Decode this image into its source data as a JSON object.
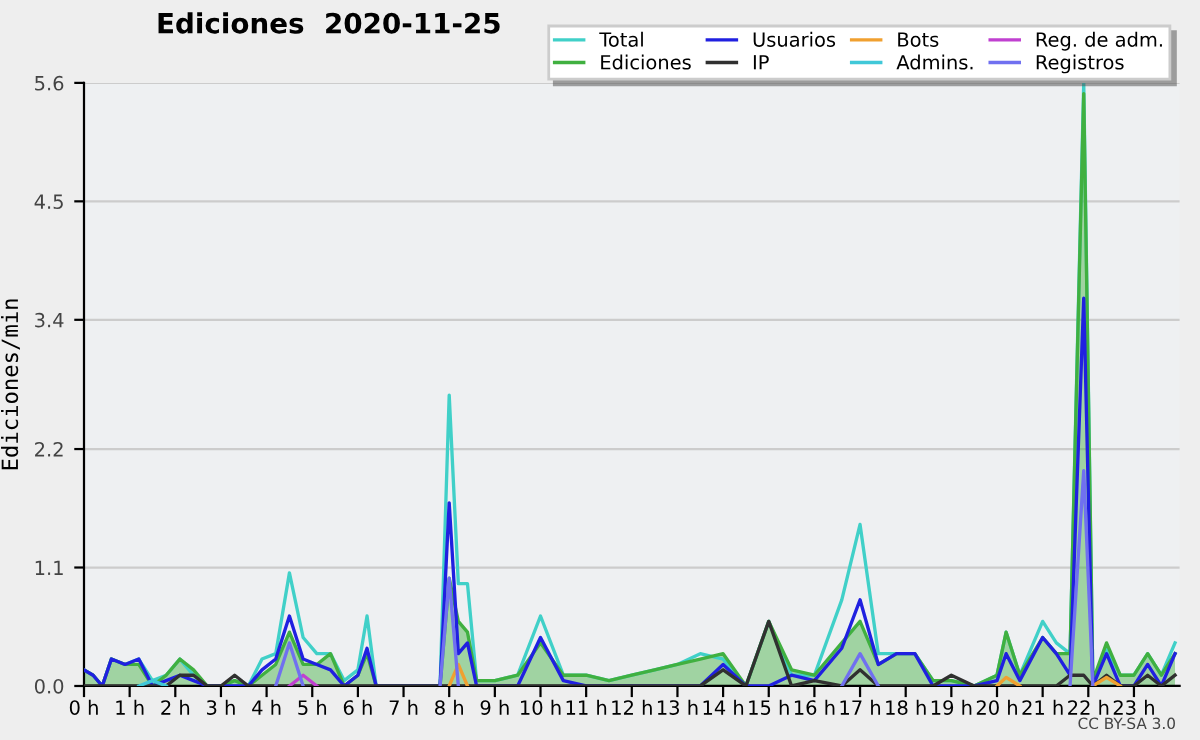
{
  "chart_data": {
    "type": "line",
    "title": "Ediciones  2020-11-25",
    "ylabel": "Ediciones/min",
    "annotations": [
      "CC BY-SA 3.0"
    ],
    "x": [
      0,
      0.2,
      0.4,
      0.6,
      0.9,
      1.2,
      1.5,
      1.8,
      2.1,
      2.4,
      2.7,
      3.0,
      3.3,
      3.6,
      3.9,
      4.2,
      4.5,
      4.8,
      5.1,
      5.4,
      5.7,
      6.0,
      6.2,
      6.4,
      7.0,
      7.6,
      7.8,
      8.0,
      8.2,
      8.4,
      8.6,
      9.0,
      9.5,
      10.0,
      10.5,
      11.0,
      11.5,
      12.0,
      12.5,
      13.0,
      13.5,
      14.0,
      14.5,
      15.0,
      15.5,
      16.0,
      16.6,
      17.0,
      17.4,
      17.8,
      18.2,
      18.6,
      19.0,
      19.5,
      20.0,
      20.2,
      20.5,
      21.0,
      21.3,
      21.6,
      21.9,
      22.1,
      22.4,
      22.7,
      23.0,
      23.3,
      23.6,
      23.9
    ],
    "series": [
      {
        "name": "Total",
        "color": "#40d0c8",
        "values": [
          0.15,
          0.1,
          0,
          0.25,
          0.2,
          0.25,
          0.05,
          0.1,
          0.25,
          0.1,
          0,
          0,
          0.05,
          0,
          0.25,
          0.3,
          1.05,
          0.45,
          0.3,
          0.3,
          0.05,
          0.15,
          0.65,
          0,
          0,
          0,
          0,
          2.7,
          0.95,
          0.95,
          0.05,
          0.05,
          0.1,
          0.65,
          0.1,
          0.1,
          0.05,
          0.1,
          0.15,
          0.2,
          0.3,
          0.25,
          0,
          0.6,
          0.1,
          0.1,
          0.8,
          1.5,
          0.3,
          0.3,
          0.3,
          0.05,
          0.05,
          0,
          0.1,
          0.5,
          0.1,
          0.6,
          0.4,
          0.3,
          5.6,
          0.05,
          0.35,
          0.1,
          0.1,
          0.3,
          0.1,
          0.4
        ]
      },
      {
        "name": "Ediciones",
        "color": "#40b040",
        "type": "area",
        "values": [
          0.15,
          0.1,
          0,
          0.25,
          0.2,
          0.2,
          0,
          0.1,
          0.25,
          0.15,
          0,
          0,
          0.05,
          0,
          0.1,
          0.2,
          0.5,
          0.2,
          0.2,
          0.3,
          0,
          0.1,
          0.3,
          0,
          0,
          0,
          0,
          1.0,
          0.6,
          0.5,
          0.05,
          0.05,
          0.1,
          0.4,
          0.1,
          0.1,
          0.05,
          0.1,
          0.15,
          0.2,
          0.25,
          0.3,
          0,
          0.6,
          0.15,
          0.1,
          0.4,
          0.6,
          0.2,
          0.3,
          0.3,
          0.05,
          0.05,
          0,
          0.1,
          0.5,
          0.1,
          0.45,
          0.3,
          0.3,
          5.5,
          0.05,
          0.4,
          0.1,
          0.1,
          0.3,
          0.1,
          0.3
        ]
      },
      {
        "name": "Usuarios",
        "color": "#2020e0",
        "values": [
          0.15,
          0.1,
          0,
          0.25,
          0.2,
          0.25,
          0,
          0.05,
          0.1,
          0.05,
          0,
          0,
          0,
          0,
          0.15,
          0.25,
          0.65,
          0.25,
          0.2,
          0.15,
          0,
          0.1,
          0.35,
          0,
          0,
          0,
          0,
          1.7,
          0.3,
          0.4,
          0,
          0,
          0,
          0.45,
          0.05,
          0,
          0,
          0,
          0,
          0,
          0,
          0.2,
          0,
          0,
          0.1,
          0.05,
          0.35,
          0.8,
          0.2,
          0.3,
          0.3,
          0,
          0,
          0,
          0.05,
          0.3,
          0.05,
          0.45,
          0.3,
          0.1,
          3.6,
          0,
          0.3,
          0,
          0,
          0.2,
          0,
          0.3
        ]
      },
      {
        "name": "IP",
        "color": "#303030",
        "values": [
          0,
          0,
          0,
          0,
          0,
          0,
          0,
          0,
          0.1,
          0.1,
          0,
          0,
          0.1,
          0,
          0,
          0,
          0,
          0,
          0,
          0,
          0,
          0,
          0,
          0,
          0,
          0,
          0,
          0,
          0,
          0,
          0,
          0,
          0,
          0,
          0,
          0,
          0,
          0,
          0,
          0,
          0,
          0.15,
          0,
          0.6,
          0,
          0.05,
          0,
          0.15,
          0,
          0,
          0,
          0,
          0.1,
          0,
          0,
          0,
          0,
          0,
          0,
          0.1,
          0.1,
          0,
          0.1,
          0,
          0,
          0.1,
          0,
          0.1
        ]
      },
      {
        "name": "Bots",
        "color": "#f0a030",
        "values": [
          null,
          null,
          null,
          null,
          null,
          null,
          null,
          null,
          null,
          null,
          null,
          null,
          null,
          null,
          null,
          null,
          null,
          null,
          null,
          null,
          null,
          null,
          null,
          null,
          null,
          null,
          null,
          0,
          0.2,
          0,
          null,
          null,
          null,
          null,
          null,
          null,
          null,
          null,
          null,
          null,
          null,
          null,
          null,
          null,
          null,
          null,
          null,
          null,
          null,
          null,
          null,
          null,
          null,
          null,
          0,
          0.08,
          0,
          null,
          null,
          null,
          null,
          0,
          0.08,
          0,
          null,
          null,
          null,
          null
        ]
      },
      {
        "name": "Admins.",
        "color": "#40c8d8",
        "values": [
          null,
          null,
          null,
          null,
          null,
          0,
          0.05,
          0,
          null,
          null,
          null,
          null,
          null,
          null,
          null,
          null,
          null,
          null,
          null,
          null,
          null,
          null,
          null,
          null,
          null,
          null,
          null,
          null,
          null,
          null,
          null,
          null,
          null,
          null,
          null,
          null,
          null,
          null,
          null,
          null,
          null,
          null,
          null,
          null,
          null,
          null,
          null,
          null,
          null,
          null,
          null,
          null,
          null,
          null,
          null,
          null,
          null,
          null,
          null,
          null,
          null,
          null,
          null,
          null,
          null,
          null,
          null,
          null
        ]
      },
      {
        "name": "Reg. de adm.",
        "color": "#c040d0",
        "values": [
          null,
          null,
          null,
          null,
          null,
          null,
          null,
          null,
          null,
          null,
          null,
          null,
          null,
          null,
          null,
          null,
          0,
          0.1,
          0,
          null,
          null,
          null,
          null,
          null,
          null,
          null,
          null,
          null,
          null,
          null,
          null,
          null,
          null,
          null,
          null,
          null,
          null,
          null,
          null,
          null,
          null,
          null,
          null,
          null,
          null,
          null,
          null,
          null,
          null,
          null,
          null,
          null,
          null,
          null,
          null,
          null,
          null,
          null,
          null,
          null,
          null,
          null,
          null,
          null,
          null,
          null,
          null,
          null
        ]
      },
      {
        "name": "Registros",
        "color": "#7070f0",
        "values": [
          null,
          null,
          null,
          null,
          null,
          null,
          null,
          null,
          null,
          null,
          null,
          null,
          null,
          null,
          null,
          0,
          0.4,
          0,
          null,
          null,
          null,
          null,
          null,
          null,
          null,
          null,
          0,
          1.0,
          0,
          null,
          null,
          null,
          null,
          null,
          null,
          null,
          null,
          null,
          null,
          null,
          null,
          null,
          null,
          null,
          null,
          null,
          0,
          0.3,
          0,
          null,
          null,
          null,
          null,
          null,
          null,
          null,
          null,
          null,
          null,
          0,
          2.0,
          0,
          null,
          null,
          null,
          null,
          null,
          null
        ]
      }
    ],
    "xlim": [
      0,
      24
    ],
    "xticks": [
      {
        "value": 0,
        "label": "0 h"
      },
      {
        "value": 1,
        "label": "1 h"
      },
      {
        "value": 2,
        "label": "2 h"
      },
      {
        "value": 3,
        "label": "3 h"
      },
      {
        "value": 4,
        "label": "4 h"
      },
      {
        "value": 5,
        "label": "5 h"
      },
      {
        "value": 6,
        "label": "6 h"
      },
      {
        "value": 7,
        "label": "7 h"
      },
      {
        "value": 8,
        "label": "8 h"
      },
      {
        "value": 9,
        "label": "9 h"
      },
      {
        "value": 10,
        "label": "10 h"
      },
      {
        "value": 11,
        "label": "11 h"
      },
      {
        "value": 12,
        "label": "12 h"
      },
      {
        "value": 13,
        "label": "13 h"
      },
      {
        "value": 14,
        "label": "14 h"
      },
      {
        "value": 15,
        "label": "15 h"
      },
      {
        "value": 16,
        "label": "16 h"
      },
      {
        "value": 17,
        "label": "17 h"
      },
      {
        "value": 18,
        "label": "18 h"
      },
      {
        "value": 19,
        "label": "19 h"
      },
      {
        "value": 20,
        "label": "20 h"
      },
      {
        "value": 21,
        "label": "21 h"
      },
      {
        "value": 22,
        "label": "22 h"
      },
      {
        "value": 23,
        "label": "23 h"
      }
    ],
    "ylim": [
      0,
      5.6
    ],
    "yticks": [
      {
        "value": 0,
        "label": "0.0"
      },
      1.1,
      2.2,
      3.4,
      4.5,
      5.6
    ],
    "grid": "y",
    "legend": "top right"
  }
}
